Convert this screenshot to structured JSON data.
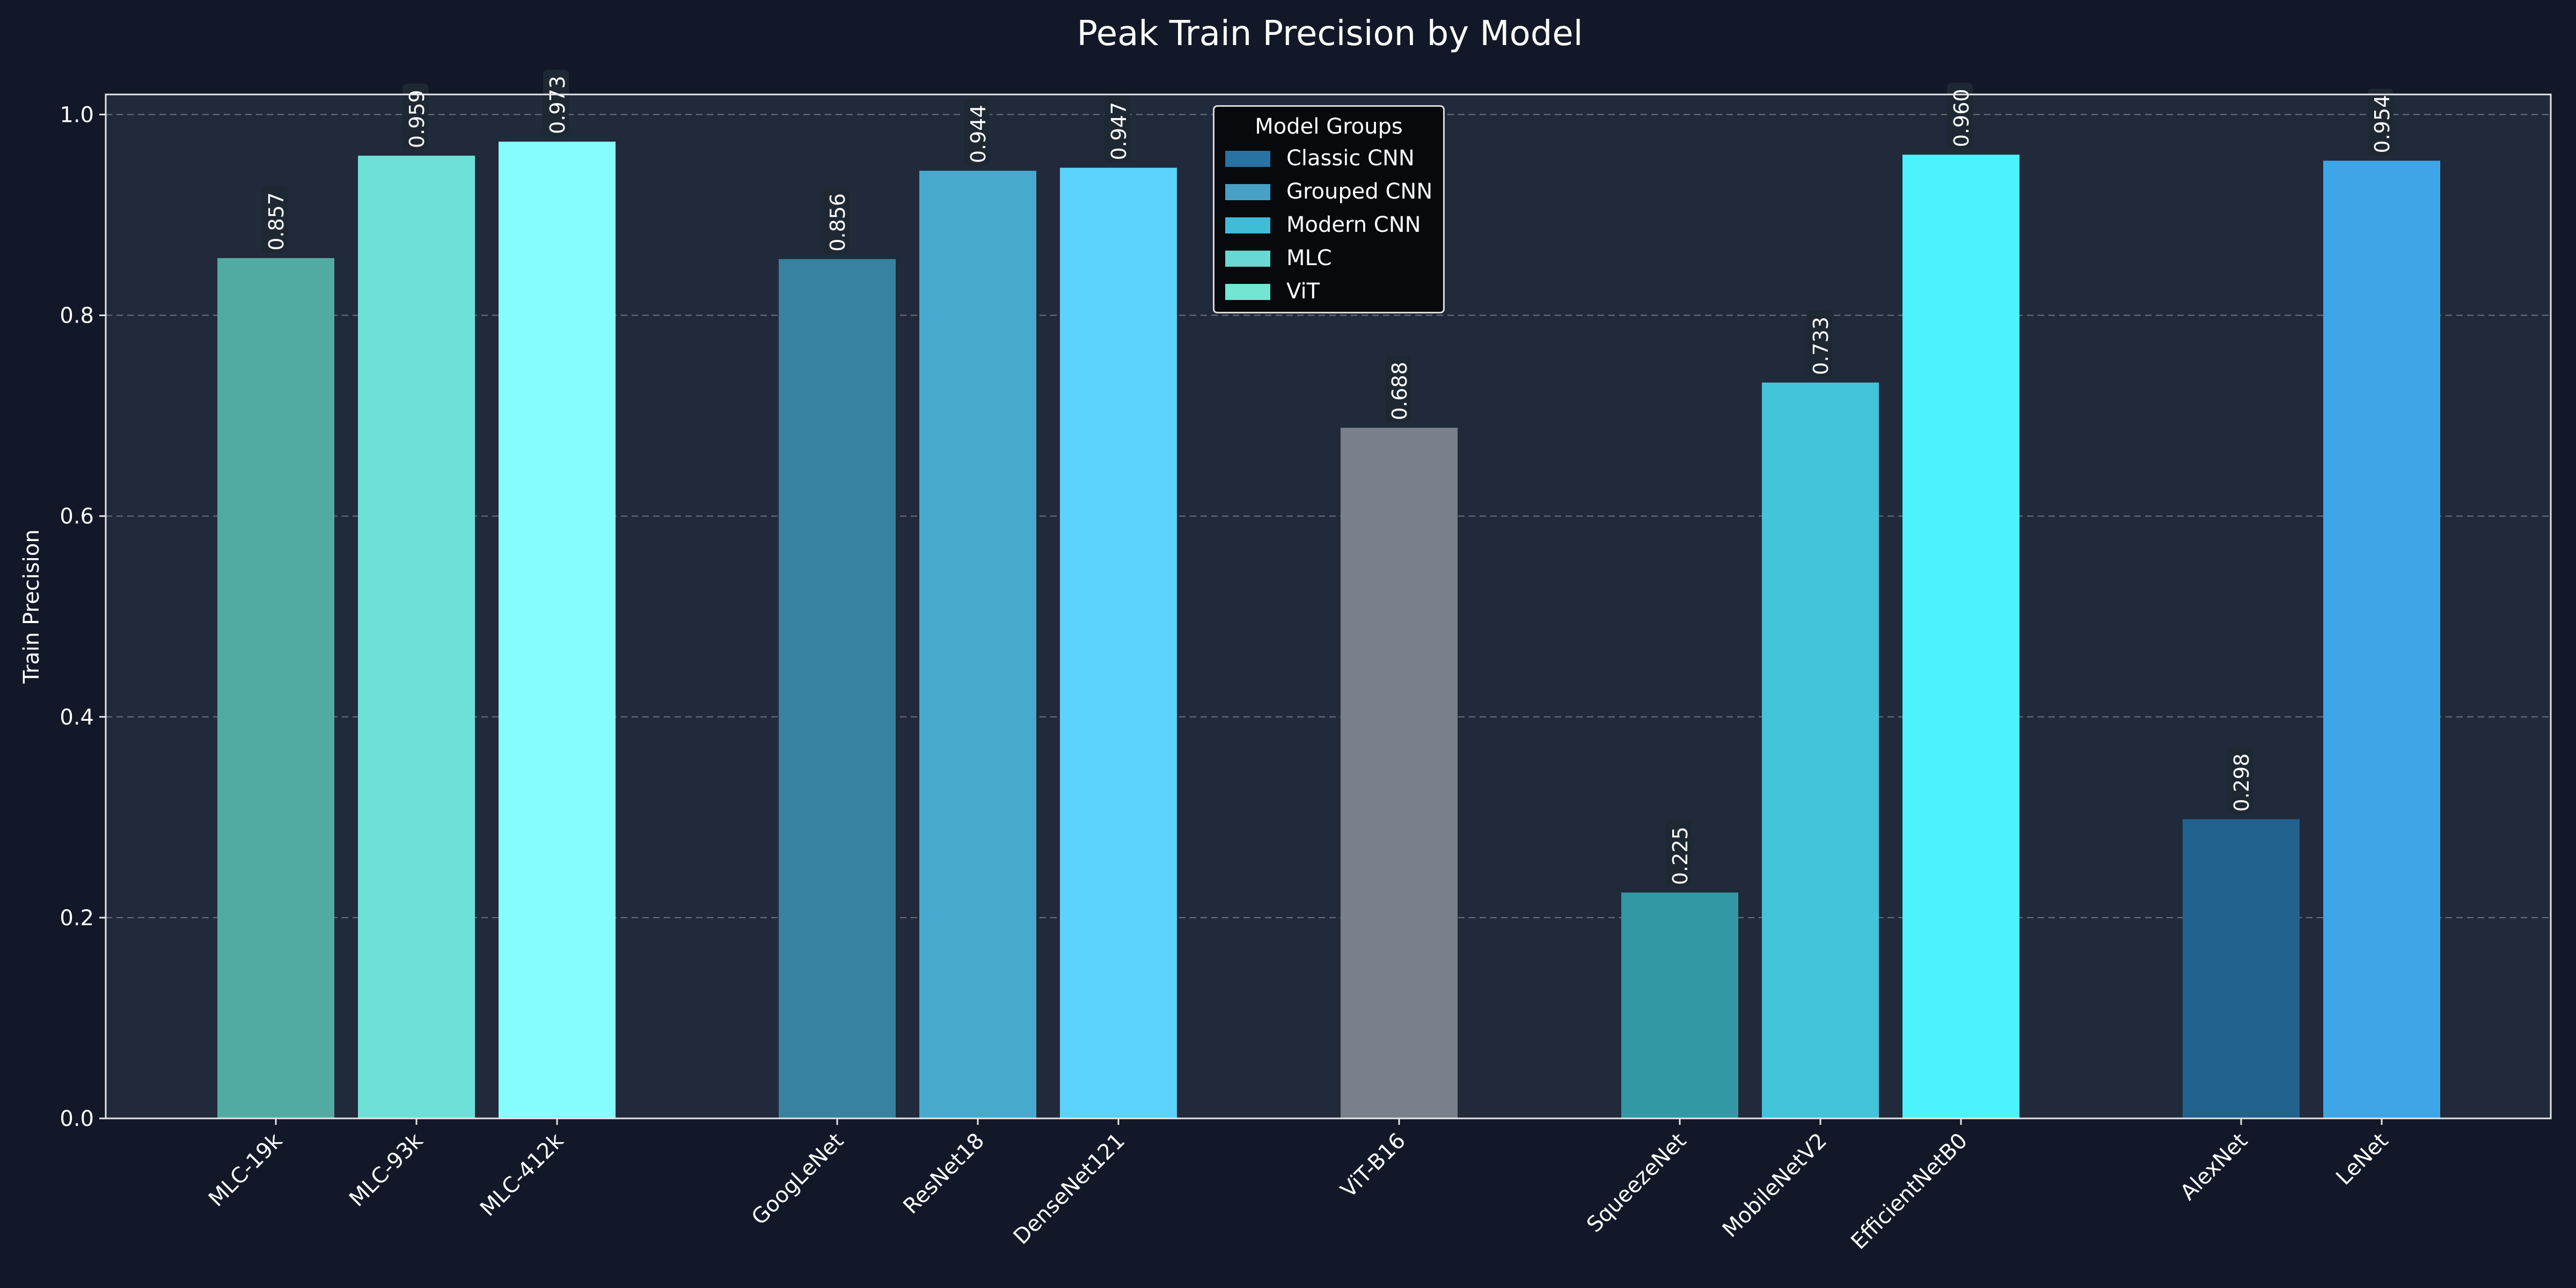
{
  "chart_data": {
    "type": "bar",
    "title": "Peak Train Precision by Model",
    "xlabel": "",
    "ylabel": "Train Precision",
    "ylim": [
      0,
      1.02
    ],
    "yticks": [
      "0.0",
      "0.2",
      "0.4",
      "0.6",
      "0.8",
      "1.0"
    ],
    "grid": "horizontal dashed",
    "categories": [
      "MLC-19k",
      "MLC-93k",
      "MLC-412k",
      "GoogLeNet",
      "ResNet18",
      "DenseNet121",
      "ViT-B16",
      "SqueezeNet",
      "MobileNetV2",
      "EfficientNetB0",
      "AlexNet",
      "LeNet"
    ],
    "values": [
      0.857,
      0.959,
      0.973,
      0.856,
      0.944,
      0.947,
      0.688,
      0.225,
      0.733,
      0.96,
      0.298,
      0.954
    ],
    "value_labels": [
      "0.857",
      "0.959",
      "0.973",
      "0.856",
      "0.944",
      "0.947",
      "0.688",
      "0.225",
      "0.733",
      "0.960",
      "0.298",
      "0.954"
    ],
    "bar_colors": [
      "#52aba3",
      "#6ce0d7",
      "#86fdfe",
      "#37839f",
      "#47a9cd",
      "#5bd3fd",
      "#7a808b",
      "#3298a6",
      "#43c4da",
      "#4cf3fe",
      "#22628f",
      "#3ea6e7"
    ],
    "legend": {
      "title": "Model Groups",
      "placement": "top-center",
      "entries": [
        {
          "label": "Classic CNN",
          "color": "#2873a3"
        },
        {
          "label": "Grouped CNN",
          "color": "#47a1c6"
        },
        {
          "label": "Modern CNN",
          "color": "#40bcd8"
        },
        {
          "label": "MLC",
          "color": "#6ad8d2"
        },
        {
          "label": "ViT",
          "color": "#73e6d3"
        }
      ]
    }
  },
  "colors": {
    "figure_bg": "#121827",
    "plot_bg": "#212a3a",
    "axis": "#e6e6e6",
    "grid": "#6b7280"
  }
}
